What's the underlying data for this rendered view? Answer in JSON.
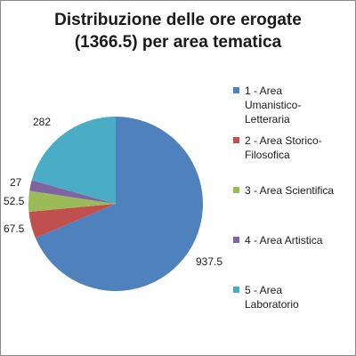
{
  "chart_data": {
    "type": "pie",
    "title_lines": [
      "Distribuzione delle ore erogate",
      "(1366.5) per area tematica"
    ],
    "slices": [
      {
        "label": "1 - Area Umanistico-Letteraria",
        "value": 937.5,
        "value_label": "937.5",
        "color": "#4F81BD"
      },
      {
        "label": "2 - Area Storico-Filosofica",
        "value": 67.5,
        "value_label": "67.5",
        "color": "#C0504D"
      },
      {
        "label": "3 - Area Scientifica",
        "value": 52.5,
        "value_label": "52.5",
        "color": "#9BBB59"
      },
      {
        "label": "4 - Area Artistica",
        "value": 27,
        "value_label": "27",
        "color": "#8064A2"
      },
      {
        "label": "5 - Area Laboratorio",
        "value": 282,
        "value_label": "282",
        "color": "#4BACC6"
      }
    ],
    "legend": {
      "position": "right",
      "items": [
        [
          "1 - Area",
          "Umanistico-",
          "Letteraria"
        ],
        [
          "2 - Area Storico-",
          "Filosofica"
        ],
        [
          "3 - Area Scientifica"
        ],
        [
          "4 - Area Artistica"
        ],
        [
          "5 - Area",
          "Laboratorio"
        ]
      ]
    },
    "start_angle_deg": 0,
    "direction": "clockwise"
  }
}
